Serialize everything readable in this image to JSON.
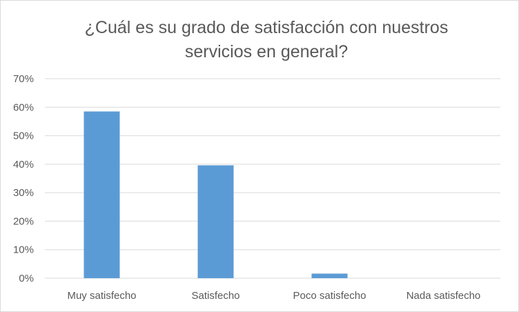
{
  "chart_data": {
    "type": "bar",
    "title_lines": [
      "¿Cuál es su grado de satisfacción con nuestros",
      "servicios en general?"
    ],
    "categories": [
      "Muy satisfecho",
      "Satisfecho",
      "Poco satisfecho",
      "Nada satisfecho"
    ],
    "values": [
      58.5,
      39.6,
      1.6,
      0.0
    ],
    "ylim": [
      0,
      70
    ],
    "yticks": [
      "0%",
      "10%",
      "20%",
      "30%",
      "40%",
      "50%",
      "60%",
      "70%"
    ],
    "grid": true,
    "colors": {
      "bar": "#5b9bd5",
      "grid": "#d9d9d9",
      "text": "#595959"
    }
  }
}
